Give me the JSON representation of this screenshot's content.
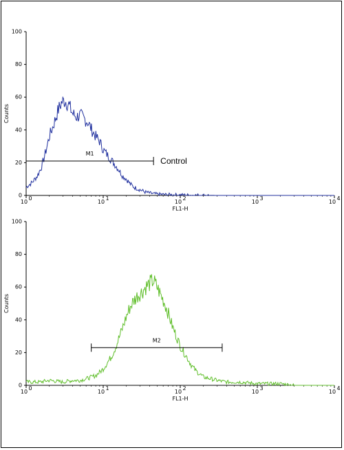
{
  "chart_data": [
    {
      "type": "histogram",
      "ylabel": "Counts",
      "xlabel": "FL1-H",
      "xscale": "log",
      "xlim": [
        1,
        10000
      ],
      "ylim": [
        0,
        100
      ],
      "yticks": [
        "0",
        "20",
        "40",
        "60",
        "80",
        "100"
      ],
      "xticks": [
        {
          "base": "10",
          "exp": "0"
        },
        {
          "base": "10",
          "exp": "1"
        },
        {
          "base": "10",
          "exp": "2"
        },
        {
          "base": "10",
          "exp": "3"
        },
        {
          "base": "10",
          "exp": "4"
        }
      ],
      "color": "#1f2f9e",
      "marker": {
        "label": "M1",
        "x_start": 1.0,
        "x_end": 45,
        "y": 21
      },
      "annotation": "Control",
      "series": [
        {
          "x": [
            1.0,
            1.2,
            1.4,
            1.6,
            1.8,
            2.0,
            2.3,
            2.6,
            2.9,
            3.2,
            3.6,
            4.0,
            4.5,
            5.0,
            5.6,
            6.3,
            7.1,
            8.0,
            9.0,
            10,
            11.2,
            12.6,
            14.1,
            15.8,
            17.8,
            20,
            22.4,
            25.1,
            28.2,
            31.6,
            35.5,
            39.8,
            44.7,
            50,
            63,
            79,
            100,
            126,
            158,
            200,
            300,
            1000,
            10000
          ],
          "y": [
            5,
            8,
            12,
            18,
            27,
            36,
            44,
            52,
            57,
            58,
            55,
            50,
            48,
            49,
            47,
            45,
            40,
            36,
            33,
            28,
            25,
            22,
            19,
            16,
            12,
            10,
            7,
            5,
            4,
            3,
            2,
            1.5,
            1,
            0.8,
            0.5,
            0.4,
            0.3,
            0.2,
            0.1,
            0.1,
            0,
            0,
            0
          ]
        }
      ]
    },
    {
      "type": "histogram",
      "ylabel": "Counts",
      "xlabel": "FL1-H",
      "xscale": "log",
      "xlim": [
        1,
        10000
      ],
      "ylim": [
        0,
        100
      ],
      "yticks": [
        "0",
        "20",
        "40",
        "60",
        "80",
        "100"
      ],
      "xticks": [
        {
          "base": "10",
          "exp": "0"
        },
        {
          "base": "10",
          "exp": "1"
        },
        {
          "base": "10",
          "exp": "2"
        },
        {
          "base": "10",
          "exp": "3"
        },
        {
          "base": "10",
          "exp": "4"
        }
      ],
      "color": "#5fbe2a",
      "marker": {
        "label": "M2",
        "x_start": 7,
        "x_end": 350,
        "y": 23
      },
      "series": [
        {
          "x": [
            1.0,
            1.5,
            2,
            3,
            4,
            5,
            6,
            7,
            8,
            9,
            10,
            11,
            12.6,
            14.1,
            15.8,
            17.8,
            20,
            22.4,
            25.1,
            28.2,
            31.6,
            35.5,
            39.8,
            44.7,
            50,
            56,
            63,
            71,
            79,
            89,
            100,
            112,
            126,
            141,
            158,
            178,
            200,
            250,
            300,
            400,
            600,
            1000,
            2000,
            3000,
            10000
          ],
          "y": [
            2,
            2,
            3,
            2,
            3,
            3,
            4,
            5,
            6,
            8,
            10,
            13,
            17,
            22,
            28,
            35,
            42,
            48,
            52,
            55,
            57,
            60,
            62,
            64,
            60,
            55,
            50,
            43,
            36,
            30,
            24,
            20,
            16,
            12,
            9,
            7,
            5,
            4,
            3,
            2,
            2,
            1,
            1,
            0,
            0
          ]
        }
      ]
    }
  ]
}
